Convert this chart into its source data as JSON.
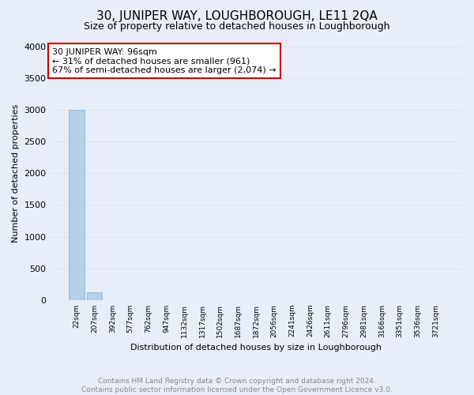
{
  "title": "30, JUNIPER WAY, LOUGHBOROUGH, LE11 2QA",
  "subtitle": "Size of property relative to detached houses in Loughborough",
  "xlabel": "Distribution of detached houses by size in Loughborough",
  "ylabel": "Number of detached properties",
  "footer_line1": "Contains HM Land Registry data © Crown copyright and database right 2024.",
  "footer_line2": "Contains public sector information licensed under the Open Government Licence v3.0.",
  "categories": [
    "22sqm",
    "207sqm",
    "392sqm",
    "577sqm",
    "762sqm",
    "947sqm",
    "1132sqm",
    "1317sqm",
    "1502sqm",
    "1687sqm",
    "1872sqm",
    "2056sqm",
    "2241sqm",
    "2426sqm",
    "2611sqm",
    "2796sqm",
    "2981sqm",
    "3166sqm",
    "3351sqm",
    "3536sqm",
    "3721sqm"
  ],
  "values": [
    3000,
    120,
    0,
    0,
    0,
    0,
    0,
    0,
    0,
    0,
    0,
    0,
    0,
    0,
    0,
    0,
    0,
    0,
    0,
    0,
    0
  ],
  "bar_color": "#b8cfe8",
  "bar_edge_color": "#7aadd4",
  "ylim": [
    0,
    4000
  ],
  "yticks": [
    0,
    500,
    1000,
    1500,
    2000,
    2500,
    3000,
    3500,
    4000
  ],
  "annotation_title": "30 JUNIPER WAY: 96sqm",
  "annotation_line1": "← 31% of detached houses are smaller (961)",
  "annotation_line2": "67% of semi-detached houses are larger (2,074) →",
  "annotation_box_color": "#ffffff",
  "annotation_box_edge_color": "#cc0000",
  "grid_color": "#d8e4f0",
  "bg_color": "#e8eef8",
  "plot_bg_color": "#e8eef8",
  "title_fontsize": 11,
  "subtitle_fontsize": 9,
  "ylabel_fontsize": 8,
  "xlabel_fontsize": 8,
  "annotation_fontsize": 8,
  "footer_fontsize": 6.5,
  "footer_color": "#888888"
}
